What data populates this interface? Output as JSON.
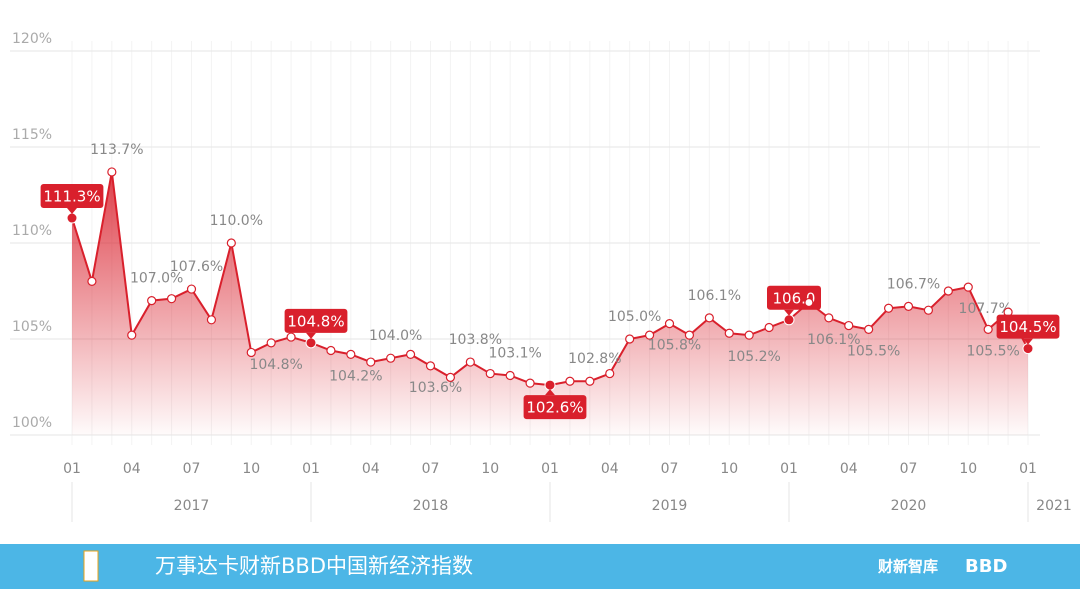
{
  "chart_data": {
    "type": "line",
    "title": "万事达卡财新BBD中国新经济指数",
    "brand_labels": [
      "财新智库",
      "BBD"
    ],
    "categories": [
      "01",
      null,
      null,
      "04",
      null,
      null,
      "07",
      null,
      null,
      "10",
      null,
      null,
      "01",
      null,
      null,
      "04",
      null,
      null,
      "07",
      null,
      null,
      "10",
      null,
      null,
      "01",
      null,
      null,
      "04",
      null,
      null,
      "07",
      null,
      null,
      "10",
      null,
      null,
      "01",
      null,
      null,
      "04",
      null,
      null,
      "07",
      null,
      null,
      "10",
      null,
      null,
      "01"
    ],
    "year_groups": [
      "2017",
      "2018",
      "2019",
      "2020",
      "2021"
    ],
    "series": [
      {
        "name": "万事达卡财新BBD中国新经济指数",
        "color": "#d9202c",
        "values": [
          111.3,
          108.0,
          113.7,
          105.2,
          107.0,
          107.1,
          107.6,
          106.0,
          110.0,
          104.3,
          104.8,
          105.1,
          104.8,
          104.4,
          104.2,
          103.8,
          104.0,
          104.2,
          103.6,
          103.0,
          103.8,
          103.2,
          103.1,
          102.7,
          102.6,
          102.8,
          102.8,
          103.2,
          105.0,
          105.2,
          105.8,
          105.2,
          106.1,
          105.3,
          105.2,
          105.6,
          106.0,
          106.9,
          106.1,
          105.7,
          105.5,
          106.6,
          106.7,
          106.5,
          107.5,
          107.7,
          105.5,
          106.4,
          104.5
        ],
        "value_labels": [
          "111.3%",
          null,
          "113.7%",
          null,
          "107.0%",
          null,
          "107.6%",
          null,
          "110.0%",
          null,
          "104.8%",
          null,
          "104.8%",
          null,
          "104.2%",
          null,
          "104.0%",
          null,
          "103.6%",
          null,
          "103.8%",
          null,
          "103.1%",
          null,
          "102.6%",
          null,
          "102.8%",
          null,
          "105.0%",
          null,
          "105.8%",
          null,
          "106.1%",
          null,
          "105.2%",
          null,
          "106.0",
          null,
          "106.1%",
          null,
          "105.5%",
          null,
          "106.7%",
          null,
          null,
          "107.7%",
          "105.5%",
          null,
          "104.5%"
        ],
        "highlighted": [
          0,
          12,
          24,
          36,
          48
        ]
      }
    ],
    "ylim": [
      100,
      120
    ],
    "yticks": [
      {
        "value": 100,
        "label": "100%"
      },
      {
        "value": 105,
        "label": "105%"
      },
      {
        "value": 110,
        "label": "110%"
      },
      {
        "value": 115,
        "label": "115%"
      },
      {
        "value": 120,
        "label": "120%"
      }
    ],
    "grid": true
  }
}
